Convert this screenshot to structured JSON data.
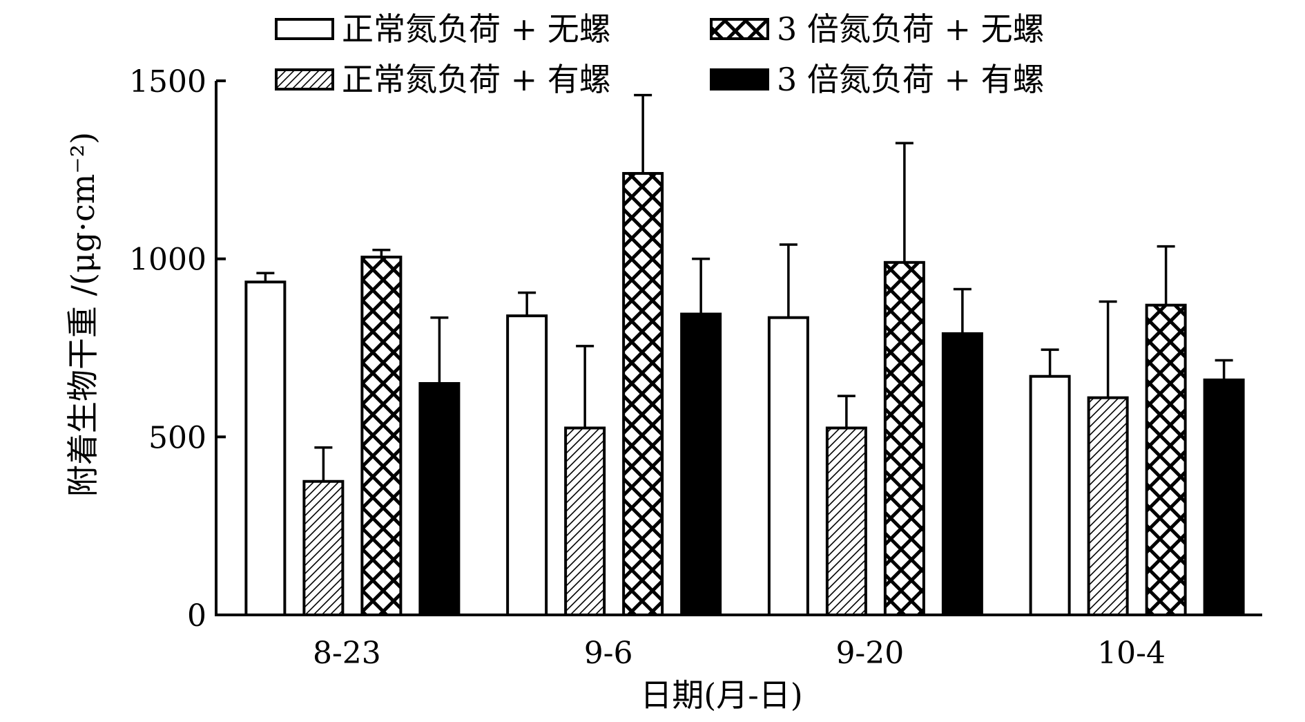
{
  "chart_data": {
    "type": "bar",
    "title": "",
    "xlabel": "日期(月-日)",
    "ylabel": "附着生物干重 /(μg·cm⁻²)",
    "ylim": [
      0,
      1500
    ],
    "yticks": [
      0,
      500,
      1000,
      1500
    ],
    "categories": [
      "8-23",
      "9-6",
      "9-20",
      "10-4"
    ],
    "legend_position": "top",
    "series": [
      {
        "name": "正常氮负荷 + 无螺",
        "fill": "white",
        "values": [
          935,
          840,
          835,
          670
        ],
        "errors": [
          25,
          65,
          205,
          75
        ]
      },
      {
        "name": "正常氮负荷 + 有螺",
        "fill": "diagonal-hatch",
        "values": [
          375,
          525,
          525,
          610
        ],
        "errors": [
          95,
          230,
          90,
          270
        ]
      },
      {
        "name": "3 倍氮负荷 + 无螺",
        "fill": "cross-hatch",
        "values": [
          1005,
          1240,
          990,
          870
        ],
        "errors": [
          20,
          220,
          335,
          165
        ]
      },
      {
        "name": "3 倍氮负荷 + 有螺",
        "fill": "black",
        "values": [
          650,
          845,
          790,
          660
        ],
        "errors": [
          185,
          155,
          125,
          55
        ]
      }
    ],
    "grid": false
  }
}
